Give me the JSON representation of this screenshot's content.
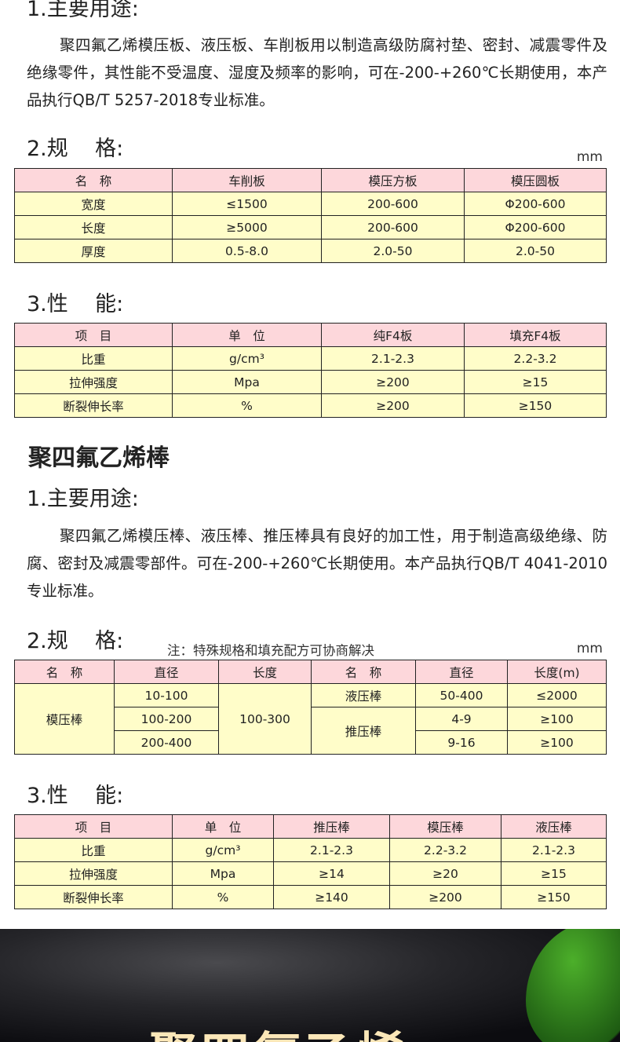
{
  "plate": {
    "use_heading": "1.主要用途:",
    "use_text": "聚四氟乙烯模压板、液压板、车削板用以制造高级防腐衬垫、密封、减震零件及绝缘零件，其性能不受温度、湿度及频率的影响，可在-200-+260℃长期使用，本产品执行QB/T 5257-2018专业标准。",
    "spec_heading": "2.规    格:",
    "spec_unit": "mm",
    "spec_table": [
      [
        "名　称",
        "车削板",
        "模压方板",
        "模压圆板"
      ],
      [
        "宽度",
        "≤1500",
        "200-600",
        "Φ200-600"
      ],
      [
        "长度",
        "≥5000",
        "200-600",
        "Φ200-600"
      ],
      [
        "厚度",
        "0.5-8.0",
        "2.0-50",
        "2.0-50"
      ]
    ],
    "perf_heading": "3.性    能:",
    "perf_table": [
      [
        "项　目",
        "单　位",
        "纯F4板",
        "填充F4板"
      ],
      [
        "比重",
        "g/cm³",
        "2.1-2.3",
        "2.2-3.2"
      ],
      [
        "拉伸强度",
        "Mpa",
        "≥200",
        "≥15"
      ],
      [
        "断裂伸长率",
        "%",
        "≥200",
        "≥150"
      ]
    ]
  },
  "rod": {
    "title": "聚四氟乙烯棒",
    "use_heading": "1.主要用途:",
    "use_text": "聚四氟乙烯模压棒、液压棒、推压棒具有良好的加工性，用于制造高级绝缘、防腐、密封及减震零部件。可在-200-+260℃长期使用。本产品执行QB/T 4041-2010专业标准。",
    "spec_heading": "2.规    格:",
    "spec_note": "注：特殊规格和填充配方可协商解决",
    "spec_unit": "mm",
    "spec_header": [
      "名　称",
      "直径",
      "长度",
      "名　称",
      "直径",
      "长度(m)"
    ],
    "spec_molded": {
      "name": "模压棒",
      "diameters": [
        "10-100",
        "100-200",
        "200-400"
      ],
      "length": "100-300"
    },
    "spec_hydraulic": {
      "name": "液压棒",
      "diameter": "50-400",
      "length": "≤2000"
    },
    "spec_pushed": {
      "name": "推压棒",
      "rows": [
        [
          "4-9",
          "≥100"
        ],
        [
          "9-16",
          "≥100"
        ]
      ]
    },
    "perf_heading": "3.性    能:",
    "perf_table": [
      [
        "项　目",
        "单　位",
        "推压棒",
        "模压棒",
        "液压棒"
      ],
      [
        "比重",
        "g/cm³",
        "2.1-2.3",
        "2.2-3.2",
        "2.1-2.3"
      ],
      [
        "拉伸强度",
        "Mpa",
        "≥14",
        "≥20",
        "≥15"
      ],
      [
        "断裂伸长率",
        "%",
        "≥140",
        "≥200",
        "≥150"
      ]
    ]
  },
  "banner": {
    "title": "聚四氟乙烯"
  },
  "colors": {
    "header_row": "#fdd7db",
    "body_row": "#fffdc9"
  }
}
